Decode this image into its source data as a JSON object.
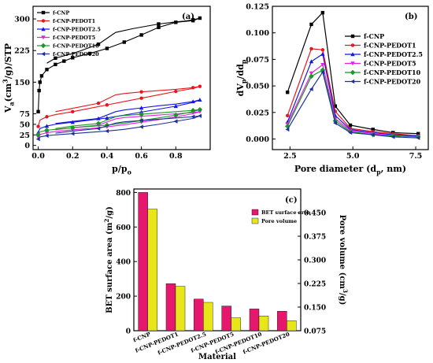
{
  "chart_data": [
    {
      "panel": "(a)",
      "type": "line",
      "ylabel": "V_a(cm^3/g)/STP",
      "xlabel": "p/p_o",
      "xlim": [
        -0.03,
        1.0
      ],
      "ylim": [
        -10,
        330
      ],
      "xticks": [
        0.0,
        0.2,
        0.4,
        0.6,
        0.8
      ],
      "yticks": [
        0,
        25,
        50,
        75,
        150,
        225,
        300
      ],
      "legend": "top-left",
      "series": [
        {
          "name": "f-CNP",
          "color": "#000000",
          "marker": "square",
          "adsorption": {
            "x": [
              0.0,
              0.005,
              0.01,
              0.02,
              0.05,
              0.1,
              0.15,
              0.2,
              0.3,
              0.4,
              0.5,
              0.6,
              0.7,
              0.8,
              0.9,
              0.94
            ],
            "y": [
              80,
              130,
              150,
              165,
              180,
              192,
              200,
              208,
              218,
              230,
              245,
              262,
              280,
              292,
              296,
              302
            ]
          },
          "desorption": {
            "x": [
              0.94,
              0.9,
              0.85,
              0.8,
              0.7,
              0.55,
              0.45,
              0.35,
              0.25,
              0.2,
              0.1,
              0.05
            ],
            "y": [
              302,
              298,
              295,
              293,
              288,
              277,
              268,
              240,
              225,
              218,
              207,
              195
            ]
          }
        },
        {
          "name": "f-CNP-PEDOT1",
          "color": "#e8161b",
          "marker": "circle",
          "adsorption": {
            "x": [
              0.0,
              0.01,
              0.05,
              0.1,
              0.2,
              0.3,
              0.4,
              0.5,
              0.6,
              0.7,
              0.8,
              0.9,
              0.94
            ],
            "y": [
              45,
              60,
              68,
              73,
              80,
              88,
              96,
              104,
              112,
              120,
              128,
              135,
              140
            ]
          },
          "desorption": {
            "x": [
              0.94,
              0.9,
              0.8,
              0.7,
              0.6,
              0.5,
              0.45,
              0.35,
              0.2,
              0.1
            ],
            "y": [
              140,
              137,
              133,
              130,
              127,
              123,
              120,
              100,
              88,
              80
            ]
          }
        },
        {
          "name": "f-CNP-PEDOT2.5",
          "color": "#1515e6",
          "marker": "triangle-up",
          "adsorption": {
            "x": [
              0.0,
              0.01,
              0.05,
              0.1,
              0.2,
              0.3,
              0.4,
              0.5,
              0.6,
              0.7,
              0.8,
              0.9,
              0.94
            ],
            "y": [
              30,
              40,
              46,
              50,
              55,
              60,
              65,
              72,
              79,
              86,
              93,
              102,
              108
            ]
          },
          "desorption": {
            "x": [
              0.94,
              0.9,
              0.8,
              0.7,
              0.6,
              0.5,
              0.45,
              0.35,
              0.2,
              0.1
            ],
            "y": [
              108,
              104,
              98,
              94,
              89,
              84,
              80,
              64,
              57,
              52
            ]
          }
        },
        {
          "name": "f-CNP-PEDOT5",
          "color": "#e61ee6",
          "marker": "triangle-down",
          "adsorption": {
            "x": [
              0.0,
              0.01,
              0.05,
              0.1,
              0.2,
              0.3,
              0.4,
              0.5,
              0.6,
              0.7,
              0.8,
              0.9,
              0.94
            ],
            "y": [
              20,
              26,
              30,
              33,
              37,
              40,
              44,
              49,
              55,
              61,
              68,
              75,
              80
            ]
          },
          "desorption": {
            "x": [
              0.94,
              0.9,
              0.8,
              0.7,
              0.6,
              0.5,
              0.45,
              0.35,
              0.2,
              0.1
            ],
            "y": [
              80,
              78,
              75,
              72,
              69,
              66,
              63,
              48,
              42,
              37
            ]
          }
        },
        {
          "name": "f-CNP-PEDOT10",
          "color": "#159a23",
          "marker": "diamond",
          "adsorption": {
            "x": [
              0.0,
              0.01,
              0.05,
              0.1,
              0.2,
              0.3,
              0.4,
              0.5,
              0.6,
              0.7,
              0.8,
              0.9,
              0.94
            ],
            "y": [
              25,
              32,
              36,
              38,
              42,
              45,
              48,
              53,
              59,
              65,
              72,
              80,
              85
            ]
          },
          "desorption": {
            "x": [
              0.94,
              0.9,
              0.8,
              0.7,
              0.6,
              0.5,
              0.45,
              0.35,
              0.2,
              0.1
            ],
            "y": [
              85,
              83,
              80,
              77,
              74,
              71,
              68,
              52,
              46,
              40
            ]
          }
        },
        {
          "name": "f-CNP-PEDOT20",
          "color": "#1d2f9a",
          "marker": "triangle-left",
          "adsorption": {
            "x": [
              0.0,
              0.01,
              0.05,
              0.1,
              0.2,
              0.3,
              0.4,
              0.5,
              0.6,
              0.7,
              0.8,
              0.9,
              0.94
            ],
            "y": [
              15,
              20,
              23,
              25,
              28,
              31,
              34,
              38,
              44,
              50,
              57,
              64,
              70
            ]
          },
          "desorption": {
            "x": [
              0.94,
              0.9,
              0.8,
              0.7,
              0.6,
              0.5,
              0.45,
              0.35,
              0.2,
              0.1
            ],
            "y": [
              70,
              68,
              65,
              62,
              59,
              56,
              53,
              40,
              34,
              29
            ]
          }
        }
      ]
    },
    {
      "panel": "(b)",
      "type": "line",
      "ylabel": "dV_p/dd_p",
      "xlabel": "Pore diameter (d_p, nm)",
      "xlim": [
        1.8,
        8.0
      ],
      "ylim": [
        -0.01,
        0.125
      ],
      "xticks": [
        2.5,
        5.0,
        7.5
      ],
      "yticks": [
        0.0,
        0.025,
        0.05,
        0.075,
        0.1,
        0.125
      ],
      "legend": "top-right",
      "x": [
        2.4,
        3.35,
        3.8,
        4.3,
        4.9,
        5.8,
        6.6,
        7.6
      ],
      "series": [
        {
          "name": "f-CNP",
          "color": "#000000",
          "marker": "square",
          "values": [
            0.044,
            0.108,
            0.119,
            0.031,
            0.013,
            0.009,
            0.006,
            0.005
          ]
        },
        {
          "name": "f-CNP-PEDOT1",
          "color": "#e8161b",
          "marker": "circle",
          "values": [
            0.022,
            0.085,
            0.084,
            0.026,
            0.01,
            0.007,
            0.005,
            0.003
          ]
        },
        {
          "name": "f-CNP-PEDOT2.5",
          "color": "#1515e6",
          "marker": "triangle-up",
          "values": [
            0.016,
            0.073,
            0.08,
            0.022,
            0.009,
            0.006,
            0.004,
            0.003
          ]
        },
        {
          "name": "f-CNP-PEDOT5",
          "color": "#e61ee6",
          "marker": "triangle-down",
          "values": [
            0.014,
            0.062,
            0.07,
            0.019,
            0.008,
            0.005,
            0.003,
            0.002
          ]
        },
        {
          "name": "f-CNP-PEDOT10",
          "color": "#159a23",
          "marker": "diamond",
          "values": [
            0.012,
            0.059,
            0.065,
            0.017,
            0.007,
            0.004,
            0.003,
            0.002
          ]
        },
        {
          "name": "f-CNP-PEDOT20",
          "color": "#1d2f9a",
          "marker": "triangle-left",
          "values": [
            0.009,
            0.047,
            0.063,
            0.015,
            0.006,
            0.004,
            0.002,
            0.001
          ]
        }
      ]
    },
    {
      "panel": "(c)",
      "type": "bar",
      "xlabel": "Material",
      "ylabel": "BET surface area (m^2/g)",
      "y2label": "Pore volume (cm^3/g)",
      "categories": [
        "f-CNP",
        "f-CNP-PEDOT1",
        "f-CNP-PEDOT2.5",
        "f-CNP-PEDOT5",
        "f-CNP-PEDOT10",
        "f-CNP-PEDOT20"
      ],
      "ylim": [
        0,
        820
      ],
      "yticks": [
        0,
        200,
        400,
        600,
        800
      ],
      "y2lim": [
        0.075,
        0.475
      ],
      "y2ticks": [
        0.075,
        0.15,
        0.225,
        0.3,
        0.375,
        0.45
      ],
      "legend": "top-right",
      "series": [
        {
          "name": "BET surface area",
          "color": "#e6186e",
          "axis": "left",
          "values": [
            800,
            272,
            183,
            143,
            126,
            113
          ]
        },
        {
          "name": "Pore volume",
          "color": "#e8e61a",
          "axis": "right",
          "values": [
            0.461,
            0.216,
            0.165,
            0.116,
            0.122,
            0.107
          ]
        }
      ]
    }
  ]
}
